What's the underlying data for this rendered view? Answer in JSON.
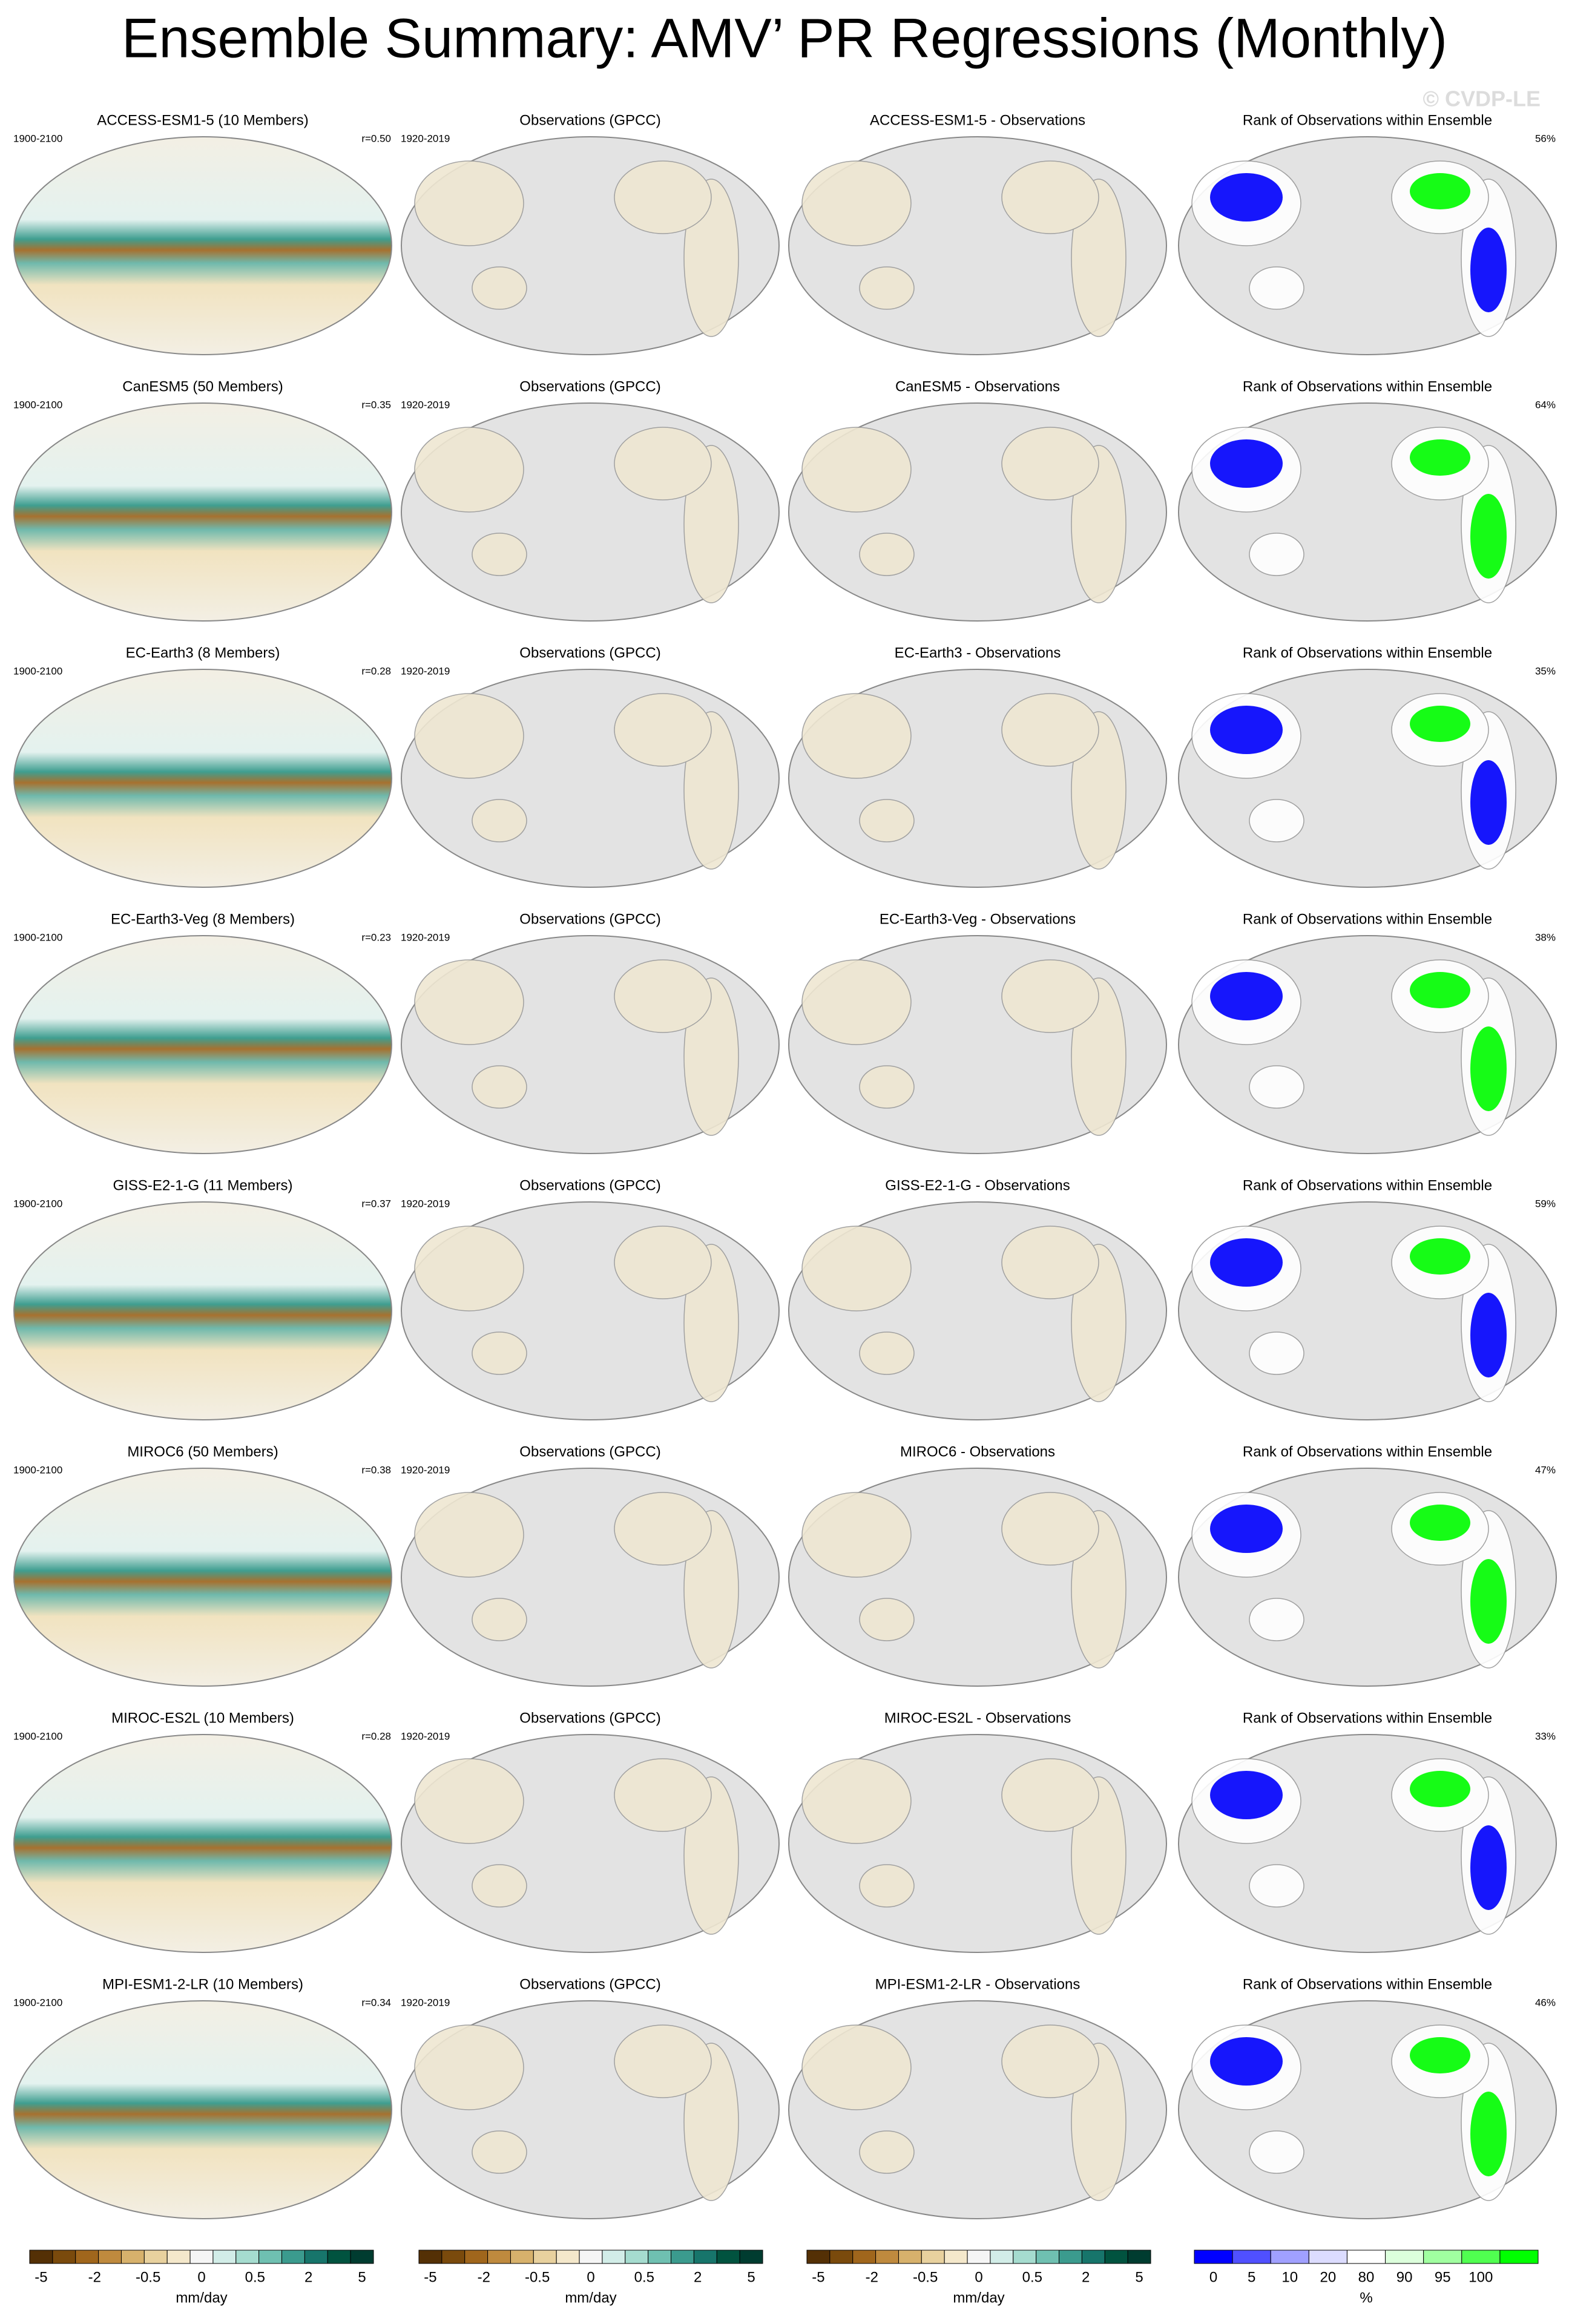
{
  "title": "Ensemble Summary: AMV’ PR Regressions (Monthly)",
  "watermark": "© CVDP-LE",
  "rows": [
    {
      "model_title": "ACCESS-ESM1-5 (10 Members)",
      "model_period": "1900-2100",
      "pattern_corr": "r=0.50",
      "obs_title": "Observations (GPCC)",
      "obs_period": "1920-2019",
      "diff_title": "ACCESS-ESM1-5 - Observations",
      "rank_title": "Rank of Observations within Ensemble",
      "rank_pct": "56%"
    },
    {
      "model_title": "CanESM5 (50 Members)",
      "model_period": "1900-2100",
      "pattern_corr": "r=0.35",
      "obs_title": "Observations (GPCC)",
      "obs_period": "1920-2019",
      "diff_title": "CanESM5 - Observations",
      "rank_title": "Rank of Observations within Ensemble",
      "rank_pct": "64%"
    },
    {
      "model_title": "EC-Earth3 (8 Members)",
      "model_period": "1900-2100",
      "pattern_corr": "r=0.28",
      "obs_title": "Observations (GPCC)",
      "obs_period": "1920-2019",
      "diff_title": "EC-Earth3 - Observations",
      "rank_title": "Rank of Observations within Ensemble",
      "rank_pct": "35%"
    },
    {
      "model_title": "EC-Earth3-Veg (8 Members)",
      "model_period": "1900-2100",
      "pattern_corr": "r=0.23",
      "obs_title": "Observations (GPCC)",
      "obs_period": "1920-2019",
      "diff_title": "EC-Earth3-Veg - Observations",
      "rank_title": "Rank of Observations within Ensemble",
      "rank_pct": "38%"
    },
    {
      "model_title": "GISS-E2-1-G (11 Members)",
      "model_period": "1900-2100",
      "pattern_corr": "r=0.37",
      "obs_title": "Observations (GPCC)",
      "obs_period": "1920-2019",
      "diff_title": "GISS-E2-1-G - Observations",
      "rank_title": "Rank of Observations within Ensemble",
      "rank_pct": "59%"
    },
    {
      "model_title": "MIROC6 (50 Members)",
      "model_period": "1900-2100",
      "pattern_corr": "r=0.38",
      "obs_title": "Observations (GPCC)",
      "obs_period": "1920-2019",
      "diff_title": "MIROC6 - Observations",
      "rank_title": "Rank of Observations within Ensemble",
      "rank_pct": "47%"
    },
    {
      "model_title": "MIROC-ES2L (10 Members)",
      "model_period": "1900-2100",
      "pattern_corr": "r=0.28",
      "obs_title": "Observations (GPCC)",
      "obs_period": "1920-2019",
      "diff_title": "MIROC-ES2L - Observations",
      "rank_title": "Rank of Observations within Ensemble",
      "rank_pct": "33%"
    },
    {
      "model_title": "MPI-ESM1-2-LR (10 Members)",
      "model_period": "1900-2100",
      "pattern_corr": "r=0.34",
      "obs_title": "Observations (GPCC)",
      "obs_period": "1920-2019",
      "diff_title": "MPI-ESM1-2-LR - Observations",
      "rank_title": "Rank of Observations within Ensemble",
      "rank_pct": "46%"
    }
  ],
  "colorbars": [
    {
      "labels": [
        "-5",
        "-2",
        "-0.5",
        "0",
        "0.5",
        "2",
        "5"
      ],
      "units": "mm/day"
    },
    {
      "labels": [
        "-5",
        "-2",
        "-0.5",
        "0",
        "0.5",
        "2",
        "5"
      ],
      "units": "mm/day"
    },
    {
      "labels": [
        "-5",
        "-2",
        "-0.5",
        "0",
        "0.5",
        "2",
        "5"
      ],
      "units": "mm/day"
    },
    {
      "labels": [
        "0",
        "5",
        "10",
        "20",
        "80",
        "90",
        "95",
        "100"
      ],
      "units": "%"
    }
  ]
}
